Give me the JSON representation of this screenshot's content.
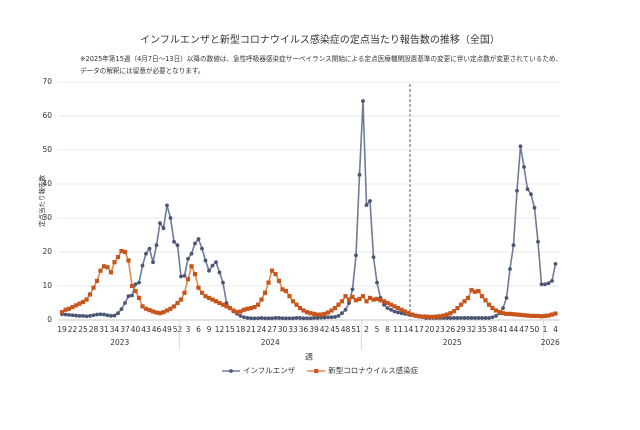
{
  "chart_data": {
    "type": "line",
    "title": "インフルエンザと新型コロナウイルス感染症の定点当たり報告数の推移（全国）",
    "note": [
      "※2025年第15週（4月7日～13日）以降の数値は、急性呼吸器感染症サーベイランス開始による定点医療機関設置基準の変更に伴い定点数が変更されているため、",
      "データの解釈には留意が必要となります。"
    ],
    "y_label": "定点当たり報告数",
    "x_label": "週",
    "years": [
      "2023",
      "2024",
      "2025",
      "2026"
    ],
    "categories": [
      "19",
      null,
      null,
      "22",
      null,
      null,
      "25",
      null,
      null,
      "28",
      null,
      null,
      "31",
      null,
      null,
      "34",
      null,
      null,
      "37",
      null,
      null,
      "40",
      null,
      null,
      "43",
      null,
      null,
      "46",
      null,
      null,
      "49",
      null,
      null,
      "52",
      null,
      null,
      "3",
      null,
      null,
      "6",
      null,
      null,
      "9",
      null,
      null,
      "12",
      null,
      null,
      "15",
      null,
      null,
      "18",
      null,
      null,
      "21",
      null,
      null,
      "24",
      null,
      null,
      "27",
      null,
      null,
      "30",
      null,
      null,
      "33",
      null,
      null,
      "36",
      null,
      null,
      "39",
      null,
      null,
      "42",
      null,
      null,
      "45",
      null,
      null,
      "48",
      null,
      null,
      "51",
      null,
      null,
      "2",
      null,
      null,
      "5",
      null,
      null,
      "8",
      null,
      null,
      "11",
      null,
      null,
      "14",
      null,
      null,
      "17",
      null,
      null,
      "20",
      null,
      null,
      "23",
      null,
      null,
      "26",
      null,
      null,
      "29",
      null,
      null,
      "32",
      null,
      null,
      "35",
      null,
      null,
      "38",
      null,
      null,
      "41",
      null,
      null,
      "44",
      null,
      null,
      "47",
      null,
      null,
      "50",
      null,
      null,
      "1",
      null,
      null,
      "4"
    ],
    "series": [
      {
        "name": "インフルエンザ",
        "color": "#4a5673",
        "line_color": "#6e7c98",
        "marker": "circle",
        "values": [
          1.7,
          1.6,
          1.5,
          1.4,
          1.3,
          1.2,
          1.2,
          1.1,
          1.2,
          1.4,
          1.6,
          1.7,
          1.6,
          1.4,
          1.2,
          1.3,
          2.0,
          3.2,
          5.0,
          7.0,
          7.2,
          10.5,
          11.0,
          16.0,
          19.5,
          21.0,
          17.0,
          22.0,
          28.5,
          27.0,
          33.7,
          30.0,
          23.0,
          22.0,
          12.8,
          13.0,
          18.0,
          19.5,
          22.5,
          23.8,
          21.0,
          17.5,
          14.5,
          16.0,
          17.0,
          14.0,
          11.0,
          5.0,
          3.5,
          2.5,
          1.8,
          1.2,
          0.8,
          0.6,
          0.5,
          0.5,
          0.5,
          0.6,
          0.5,
          0.5,
          0.5,
          0.6,
          0.6,
          0.5,
          0.5,
          0.5,
          0.5,
          0.6,
          0.6,
          0.5,
          0.5,
          0.5,
          0.6,
          0.6,
          0.7,
          0.7,
          0.8,
          0.8,
          0.9,
          1.2,
          2.0,
          3.0,
          5.0,
          9.0,
          19.0,
          42.7,
          64.4,
          33.8,
          35.0,
          18.5,
          11.0,
          6.5,
          4.5,
          3.5,
          3.0,
          2.5,
          2.2,
          2.0,
          1.8,
          1.6,
          1.4,
          1.2,
          1.0,
          0.8,
          0.6,
          0.6,
          0.6,
          0.6,
          0.6,
          0.6,
          0.6,
          0.6,
          0.6,
          0.6,
          0.6,
          0.6,
          0.6,
          0.6,
          0.6,
          0.6,
          0.6,
          0.6,
          0.6,
          0.8,
          1.2,
          2.0,
          3.5,
          6.5,
          15.0,
          22.0,
          38.0,
          51.1,
          45.0,
          38.5,
          37.0,
          33.0,
          23.0,
          10.5,
          10.5,
          10.8,
          11.5,
          16.5
        ]
      },
      {
        "name": "新型コロナウイルス感染症",
        "color": "#c8561c",
        "line_color": "#e08a52",
        "marker": "square",
        "values": [
          2.3,
          3.0,
          3.3,
          3.8,
          4.3,
          4.8,
          5.3,
          6.0,
          7.5,
          9.5,
          11.5,
          14.5,
          15.8,
          15.5,
          14.0,
          17.0,
          18.5,
          20.3,
          20.0,
          17.5,
          10.0,
          8.5,
          6.5,
          4.0,
          3.3,
          2.9,
          2.5,
          2.2,
          2.0,
          2.3,
          2.8,
          3.3,
          4.0,
          5.0,
          6.0,
          8.0,
          12.0,
          15.8,
          13.5,
          9.5,
          8.0,
          7.0,
          6.5,
          6.0,
          5.5,
          5.0,
          4.5,
          4.0,
          3.5,
          2.8,
          2.3,
          2.5,
          3.0,
          3.3,
          3.5,
          3.8,
          4.5,
          6.0,
          8.0,
          11.0,
          14.5,
          13.5,
          11.5,
          9.0,
          8.5,
          7.0,
          5.5,
          4.5,
          3.5,
          2.8,
          2.3,
          2.0,
          1.8,
          1.6,
          1.6,
          1.8,
          2.2,
          2.8,
          3.5,
          4.5,
          5.5,
          7.0,
          6.0,
          6.8,
          5.8,
          6.2,
          7.0,
          5.5,
          6.5,
          6.0,
          6.2,
          5.8,
          5.5,
          5.0,
          4.5,
          4.0,
          3.5,
          3.0,
          2.5,
          2.0,
          1.6,
          1.3,
          1.1,
          1.0,
          1.0,
          0.9,
          0.9,
          1.0,
          1.1,
          1.3,
          1.6,
          2.0,
          2.6,
          3.5,
          4.5,
          5.5,
          6.5,
          8.8,
          8.3,
          8.5,
          7.0,
          5.8,
          4.5,
          3.5,
          2.8,
          2.3,
          2.0,
          1.8,
          1.8,
          1.7,
          1.6,
          1.5,
          1.4,
          1.3,
          1.2,
          1.2,
          1.2,
          1.1,
          1.2,
          1.3,
          1.6,
          1.9
        ]
      }
    ],
    "ylim": [
      0,
      70
    ],
    "yticks": [
      0,
      10,
      20,
      30,
      40,
      50,
      60,
      70
    ],
    "grid": true,
    "legend": "bottom"
  }
}
